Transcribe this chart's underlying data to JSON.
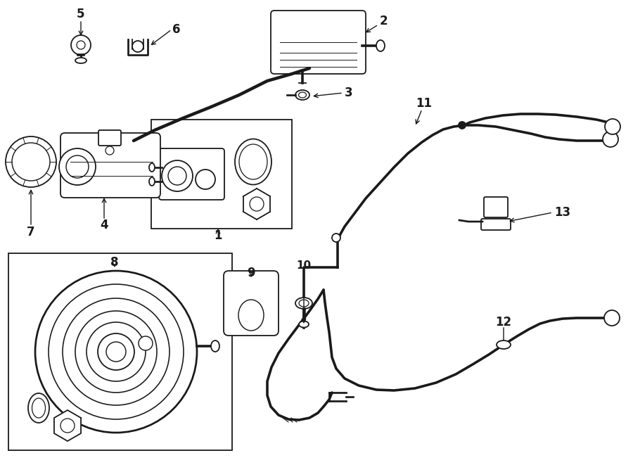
{
  "bg_color": "#ffffff",
  "line_color": "#1a1a1a",
  "lw": 1.3,
  "fig_w": 9.0,
  "fig_h": 6.61,
  "dpi": 100,
  "xlim": [
    0,
    900
  ],
  "ylim": [
    0,
    661
  ]
}
